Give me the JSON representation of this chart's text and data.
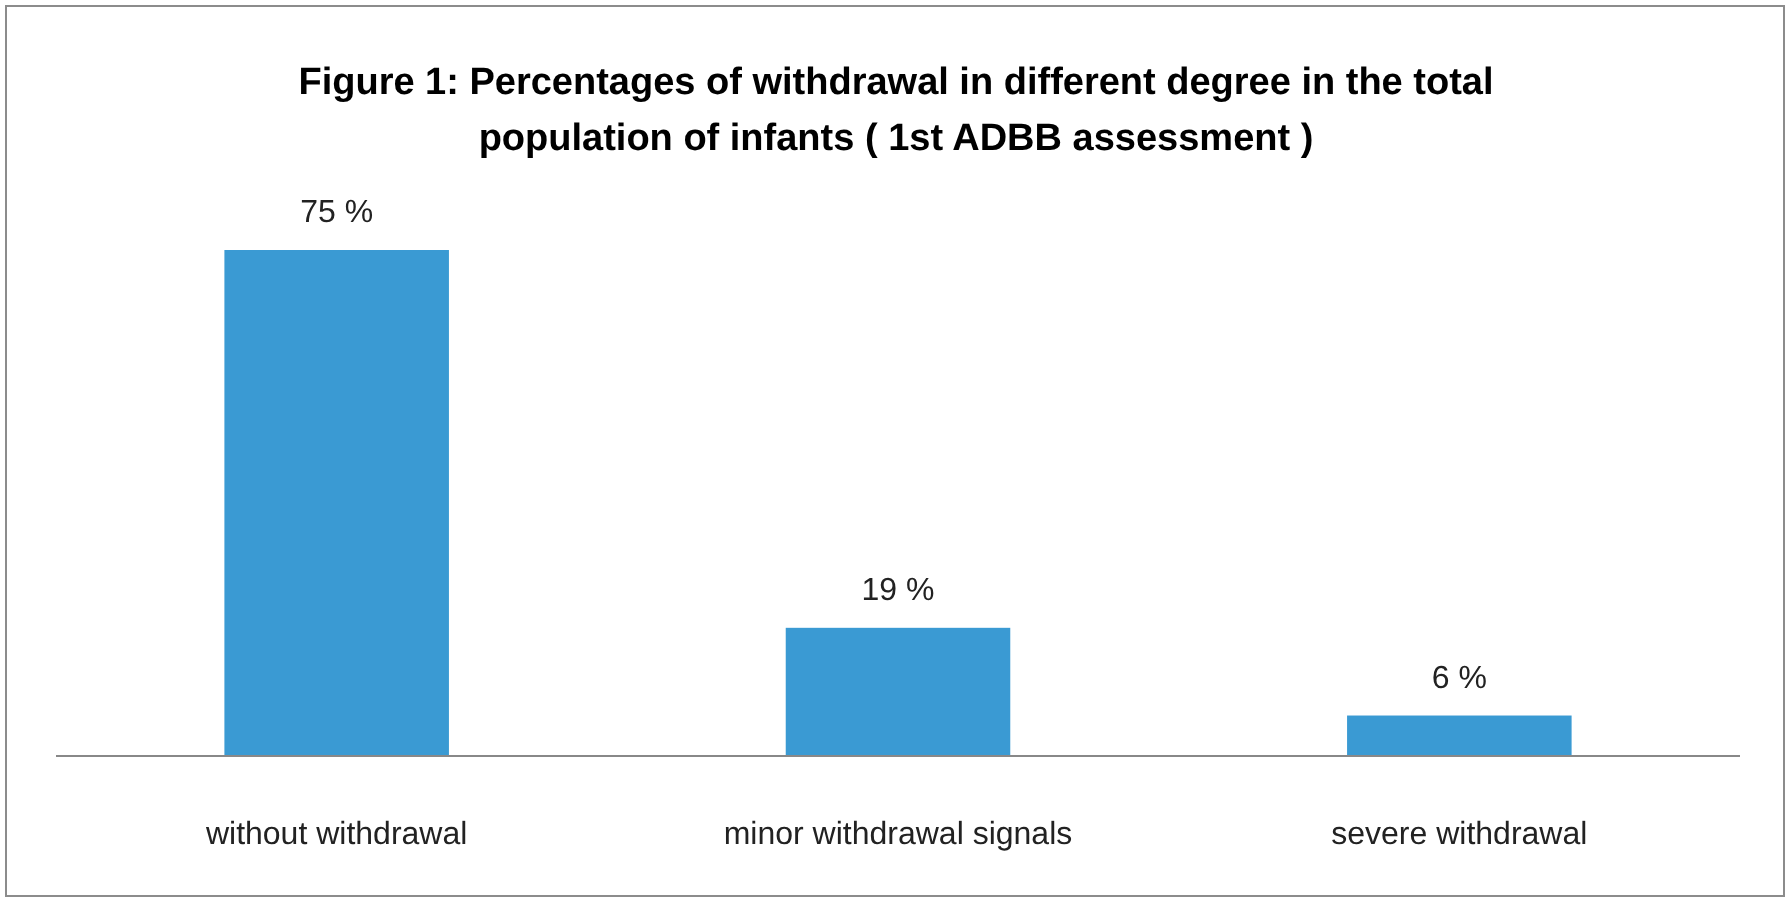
{
  "chart_data": {
    "type": "bar",
    "title": "Figure 1: Percentages of withdrawal in different degree in the total population of infants ( 1st ADBB assessment )",
    "categories": [
      "without withdrawal",
      "minor withdrawal signals",
      "severe withdrawal"
    ],
    "values": [
      75,
      19,
      6
    ],
    "value_labels": [
      "75 %",
      "19 %",
      "6 %"
    ],
    "color": "#3a9ad3"
  }
}
